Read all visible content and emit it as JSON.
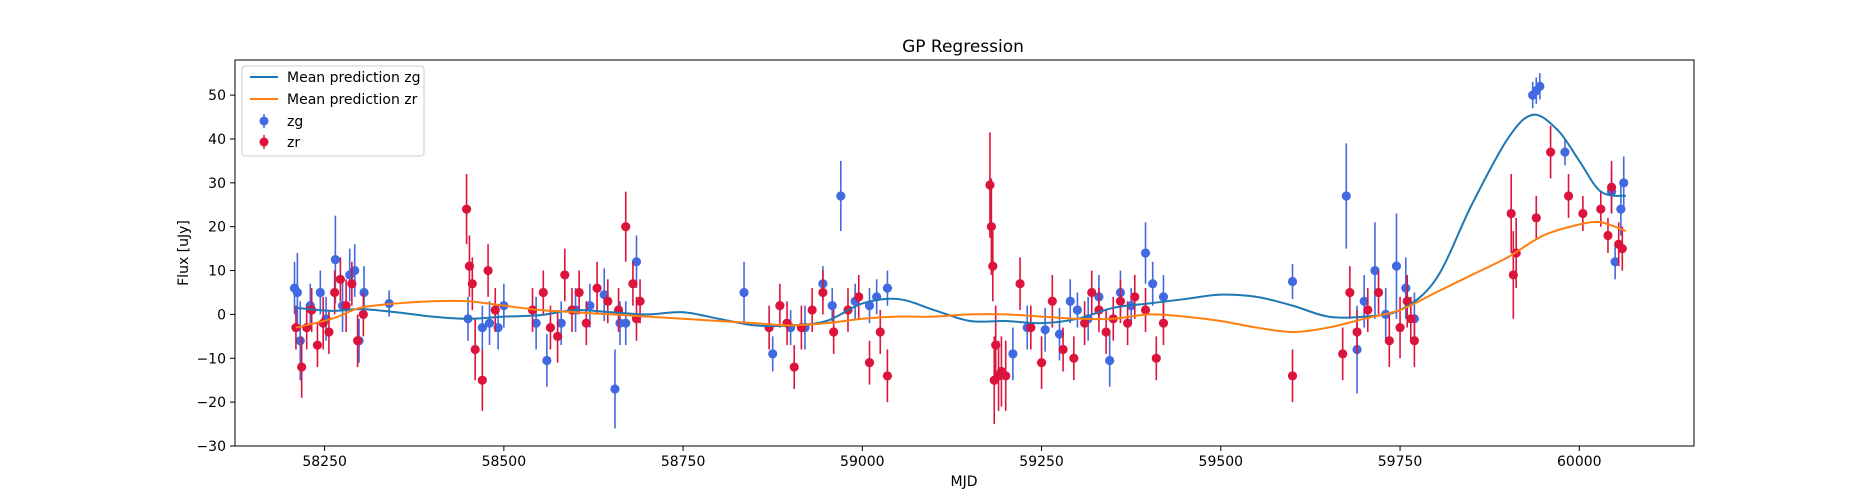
{
  "chart_data": {
    "type": "scatter",
    "title": "GP Regression",
    "xlabel": "MJD",
    "ylabel": "Flux [uJy]",
    "xlim": [
      58125,
      60160
    ],
    "ylim": [
      -30,
      58
    ],
    "xticks": [
      58250,
      58500,
      58750,
      59000,
      59250,
      59500,
      59750,
      60000
    ],
    "yticks": [
      -30,
      -20,
      -10,
      0,
      10,
      20,
      30,
      40,
      50
    ],
    "grid": false,
    "legend_position": "top-left",
    "colors": {
      "mean_zg": "#1f77b4",
      "mean_zr": "#ff7f0e",
      "zg": "#4169e1",
      "zr": "#dc143c"
    },
    "series": [
      {
        "name": "Mean prediction zg",
        "kind": "line",
        "x": [
          58210,
          58260,
          58300,
          58350,
          58400,
          58450,
          58500,
          58550,
          58600,
          58650,
          58700,
          58750,
          58800,
          58850,
          58900,
          58950,
          59000,
          59050,
          59100,
          59150,
          59200,
          59250,
          59300,
          59350,
          59400,
          59450,
          59500,
          59550,
          59600,
          59650,
          59700,
          59750,
          59800,
          59850,
          59900,
          59935,
          59970,
          60000,
          60030,
          60065
        ],
        "y": [
          1.5,
          0.8,
          1.2,
          0.5,
          -0.5,
          -1,
          -0.5,
          -0.2,
          1,
          0.5,
          0,
          0.5,
          -1,
          -2.5,
          -2.5,
          -1.5,
          2.5,
          3.5,
          1,
          -1.5,
          -1.5,
          -2,
          -1,
          1.5,
          2.5,
          3.5,
          4.5,
          4,
          2,
          -0.5,
          -0.5,
          1,
          8,
          25,
          40,
          45.5,
          42,
          35,
          28,
          27
        ]
      },
      {
        "name": "Mean prediction zr",
        "kind": "line",
        "x": [
          58210,
          58260,
          58300,
          58350,
          58400,
          58450,
          58500,
          58550,
          58600,
          58650,
          58700,
          58750,
          58800,
          58850,
          58900,
          58950,
          59000,
          59050,
          59100,
          59150,
          59200,
          59250,
          59300,
          59350,
          59400,
          59450,
          59500,
          59550,
          59600,
          59650,
          59700,
          59750,
          59800,
          59850,
          59900,
          59950,
          60000,
          60030,
          60065
        ],
        "y": [
          -3,
          -1,
          1.5,
          2.5,
          3,
          3,
          2,
          1,
          0.5,
          0,
          -0.5,
          -1,
          -1.5,
          -2,
          -2.5,
          -2,
          -1,
          -0.5,
          -0.5,
          0,
          0,
          -0.5,
          -1,
          -1,
          0,
          -0.5,
          -1.5,
          -3,
          -4,
          -3,
          -1,
          1,
          5,
          9,
          13,
          18,
          20.5,
          21,
          19
        ]
      },
      {
        "name": "zg",
        "kind": "errorbar",
        "x": [
          58208,
          58212,
          58216,
          58230,
          58244,
          58252,
          58265,
          58275,
          58285,
          58292,
          58298,
          58305,
          58340,
          58450,
          58470,
          58480,
          58492,
          58500,
          58545,
          58560,
          58580,
          58600,
          58620,
          58640,
          58655,
          58662,
          58670,
          58685,
          58835,
          58875,
          58900,
          58920,
          58945,
          58958,
          58970,
          58990,
          59010,
          59020,
          59035,
          59210,
          59230,
          59255,
          59275,
          59290,
          59300,
          59315,
          59330,
          59345,
          59360,
          59375,
          59395,
          59405,
          59420,
          59600,
          59675,
          59690,
          59700,
          59715,
          59730,
          59745,
          59758,
          59770,
          59935,
          59940,
          59945,
          59980,
          60045,
          60050,
          60058,
          60062
        ],
        "y": [
          6,
          5,
          -6,
          2,
          5,
          -1,
          12.5,
          2,
          9,
          10,
          -6,
          5,
          2.5,
          -1,
          -3,
          -2,
          -3,
          2,
          -2,
          -10.5,
          -2,
          1,
          2,
          4.5,
          -17,
          -2,
          -2,
          12,
          5,
          -9,
          -3,
          -3,
          7,
          2,
          27,
          3,
          2,
          4,
          6,
          -9,
          -3,
          -3.5,
          -4.5,
          3,
          1,
          -1,
          4,
          -10.5,
          5,
          2,
          14,
          7,
          4,
          7.5,
          27,
          -8,
          3,
          10,
          0,
          11,
          6,
          -1,
          50,
          51,
          52,
          37,
          28,
          12,
          24,
          30
        ],
        "err": [
          6,
          9,
          9,
          5,
          5,
          5,
          10,
          6,
          6,
          6,
          5,
          6,
          3,
          5,
          5,
          5,
          5,
          5,
          6,
          6,
          5,
          5,
          5,
          6,
          9,
          5,
          5,
          6,
          7,
          4,
          4,
          5,
          4,
          4,
          8,
          4,
          4,
          4,
          4,
          6,
          5,
          5,
          6,
          5,
          4,
          5,
          5,
          6,
          5,
          4,
          7,
          5,
          5,
          4,
          12,
          10,
          6,
          11,
          6,
          12,
          7,
          6,
          3,
          3,
          3,
          3,
          5,
          4,
          6,
          6
        ]
      },
      {
        "name": "zr",
        "kind": "errorbar",
        "x": [
          58210,
          58218,
          58225,
          58232,
          58240,
          58248,
          58256,
          58264,
          58272,
          58280,
          58288,
          58296,
          58304,
          58448,
          58452,
          58456,
          58460,
          58470,
          58478,
          58488,
          58540,
          58555,
          58565,
          58575,
          58585,
          58595,
          58605,
          58615,
          58630,
          58645,
          58660,
          58670,
          58680,
          58685,
          58690,
          58870,
          58885,
          58895,
          58905,
          58915,
          58930,
          58945,
          58960,
          58980,
          58995,
          59010,
          59025,
          59035,
          59178,
          59180,
          59182,
          59184,
          59186,
          59190,
          59194,
          59200,
          59220,
          59235,
          59250,
          59265,
          59280,
          59295,
          59310,
          59320,
          59330,
          59340,
          59350,
          59360,
          59370,
          59380,
          59395,
          59410,
          59420,
          59600,
          59670,
          59680,
          59690,
          59705,
          59720,
          59735,
          59750,
          59760,
          59765,
          59770,
          59905,
          59908,
          59912,
          59940,
          59960,
          59985,
          60005,
          60030,
          60040,
          60045,
          60055,
          60060
        ],
        "y": [
          -3,
          -12,
          -3,
          1,
          -7,
          -2,
          -4,
          5,
          8,
          2,
          7,
          -6,
          0,
          24,
          11,
          7,
          -8,
          -15,
          10,
          1,
          1,
          5,
          -3,
          -5,
          9,
          1,
          5,
          -2,
          6,
          3,
          1,
          20,
          7,
          -1,
          3,
          -3,
          2,
          -2,
          -12,
          -3,
          1,
          5,
          -4,
          1,
          4,
          -11,
          -4,
          -14,
          29.5,
          20,
          11,
          -15,
          -7,
          -14,
          -13,
          -14,
          7,
          -3,
          -11,
          3,
          -8,
          -10,
          -2,
          5,
          1,
          -4,
          -1,
          3,
          -2,
          4,
          1,
          -10,
          -2,
          -14,
          -9,
          5,
          -4,
          1,
          5,
          -6,
          -3,
          3,
          -1,
          -6,
          23,
          9,
          14,
          22,
          37,
          27,
          23,
          24,
          18,
          29,
          16,
          15
        ],
        "err": [
          5,
          7,
          5,
          5,
          5,
          6,
          5,
          5,
          5,
          6,
          5,
          6,
          5,
          8,
          7,
          6,
          7,
          7,
          6,
          5,
          5,
          5,
          5,
          6,
          6,
          5,
          5,
          5,
          6,
          5,
          5,
          8,
          5,
          5,
          5,
          5,
          5,
          5,
          5,
          5,
          5,
          5,
          5,
          5,
          5,
          5,
          5,
          6,
          12,
          11,
          8,
          10,
          9,
          8,
          8,
          8,
          6,
          5,
          6,
          6,
          5,
          5,
          5,
          5,
          5,
          5,
          5,
          5,
          5,
          5,
          5,
          5,
          5,
          6,
          6,
          6,
          5,
          5,
          5,
          6,
          7,
          6,
          5,
          6,
          9,
          10,
          8,
          5,
          6,
          5,
          4,
          4,
          4,
          6,
          5,
          5
        ]
      }
    ]
  }
}
